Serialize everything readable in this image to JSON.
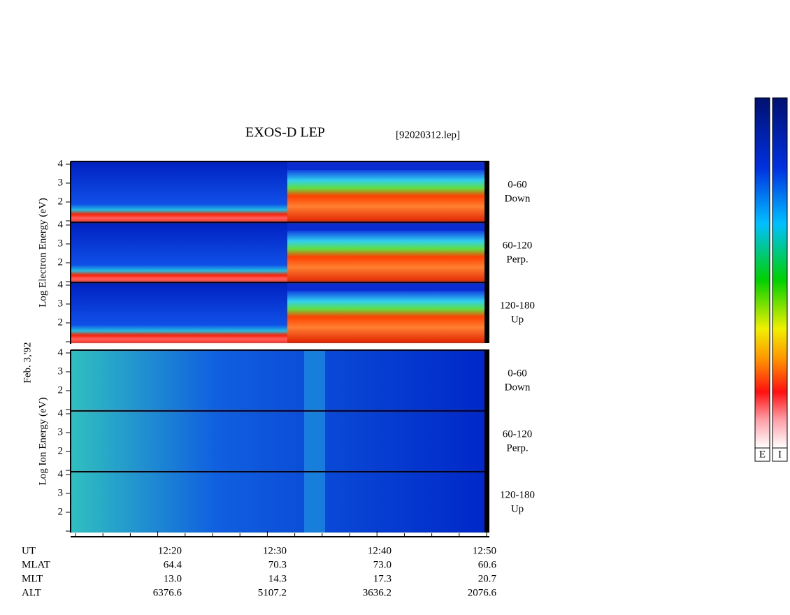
{
  "title": "EXOS-D LEP",
  "file": "[92020312.lep]",
  "date": "Feb. 3,'92",
  "groups": [
    {
      "ylabel": "Log  Electron  Energy (eV)",
      "panels": [
        {
          "angle": "0-60",
          "dir": "Down",
          "yticks": [
            2,
            3,
            4
          ]
        },
        {
          "angle": "60-120",
          "dir": "Perp.",
          "yticks": [
            2,
            3,
            4
          ]
        },
        {
          "angle": "120-180",
          "dir": "Up",
          "yticks": [
            2,
            3,
            4
          ]
        }
      ]
    },
    {
      "ylabel": "Log  Ion  Energy (eV)",
      "panels": [
        {
          "angle": "0-60",
          "dir": "Down",
          "yticks": [
            2,
            3,
            4
          ]
        },
        {
          "angle": "60-120",
          "dir": "Perp.",
          "yticks": [
            2,
            3,
            4
          ]
        },
        {
          "angle": "120-180",
          "dir": "Up",
          "yticks": [
            2,
            3,
            4
          ]
        }
      ]
    }
  ],
  "ephemeris": [
    {
      "name": "UT",
      "values": [
        "12:20",
        "12:30",
        "12:40",
        "12:50"
      ]
    },
    {
      "name": "MLAT",
      "values": [
        "64.4",
        "70.3",
        "73.0",
        "60.6"
      ]
    },
    {
      "name": "MLT",
      "values": [
        "13.0",
        "14.3",
        "17.3",
        "20.7"
      ]
    },
    {
      "name": "ALT",
      "values": [
        "6376.6",
        "5107.2",
        "3636.2",
        "2076.6"
      ]
    }
  ],
  "colorbars": [
    "E",
    "I"
  ]
}
